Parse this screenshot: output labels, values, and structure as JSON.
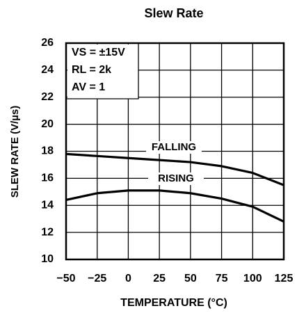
{
  "chart_data": {
    "type": "line",
    "title": "Slew Rate",
    "x_label": "TEMPERATURE (°C)",
    "y_label": "SLEW RATE (V/µs)",
    "x": [
      -50,
      -25,
      0,
      25,
      50,
      75,
      100,
      125
    ],
    "series": [
      {
        "name": "FALLING",
        "color": "#000000",
        "values": [
          17.8,
          17.65,
          17.5,
          17.35,
          17.2,
          16.9,
          16.4,
          15.5
        ]
      },
      {
        "name": "RISING",
        "color": "#000000",
        "values": [
          14.4,
          14.9,
          15.1,
          15.1,
          14.9,
          14.5,
          13.9,
          12.8
        ]
      }
    ],
    "annotations": [
      "VS = ±15V",
      "RL = 2k",
      "AV = 1"
    ],
    "xlim": [
      -50,
      125
    ],
    "xticks": [
      {
        "value": -50,
        "label": "−50"
      },
      {
        "value": -25,
        "label": "−25"
      },
      0,
      25,
      50,
      75,
      100,
      125
    ],
    "ylim": [
      10,
      26
    ],
    "yticks": [
      10,
      12,
      14,
      16,
      18,
      20,
      22,
      24,
      26
    ],
    "grid": true
  }
}
